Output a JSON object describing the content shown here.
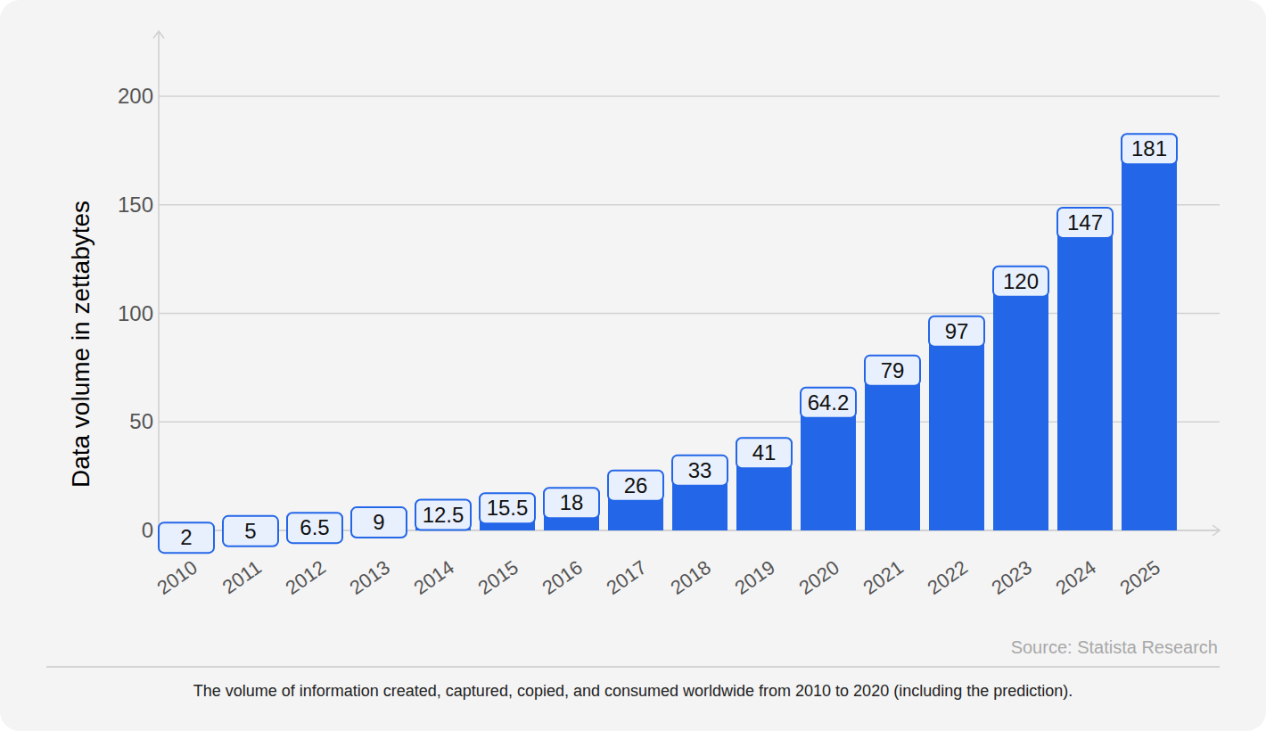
{
  "chart_data": {
    "type": "bar",
    "y_label": "Data volume in zettabytes",
    "categories": [
      "2010",
      "2011",
      "2012",
      "2013",
      "2014",
      "2015",
      "2016",
      "2017",
      "2018",
      "2019",
      "2020",
      "2021",
      "2022",
      "2023",
      "2024",
      "2025"
    ],
    "values": [
      2,
      5,
      6.5,
      9,
      12.5,
      15.5,
      18,
      26,
      33,
      41,
      64.2,
      79,
      97,
      120,
      147,
      181
    ],
    "color": "#2366e8",
    "ylim": [
      0,
      230
    ],
    "yticks": [
      0,
      50,
      100,
      150,
      200
    ],
    "grid": true,
    "data_labels": true,
    "source": "Source: Statista Research",
    "caption": "The volume of information created, captured, copied, and consumed worldwide from 2010 to 2020 (including the prediction)."
  }
}
